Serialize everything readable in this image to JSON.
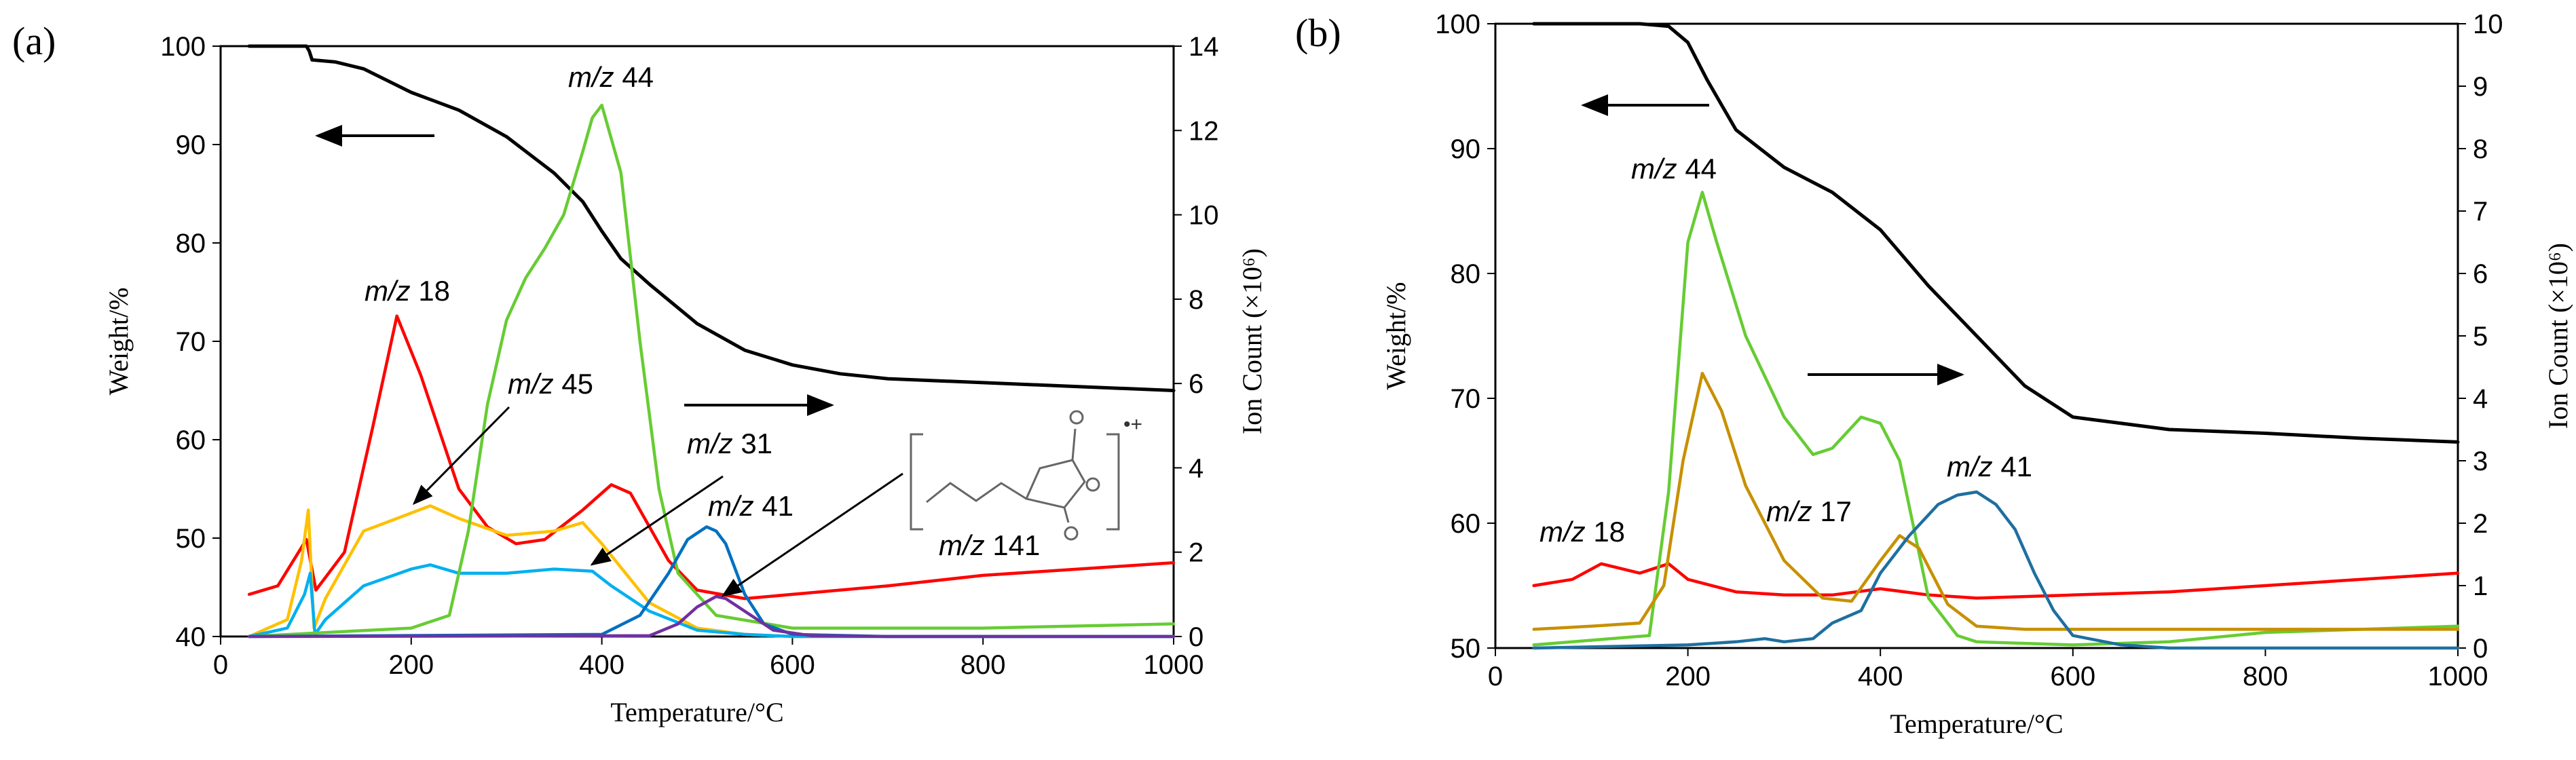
{
  "chart_data": [
    {
      "type": "line",
      "panel_label": "(a)",
      "xlabel": "Temperature/°C",
      "ylabel": "Weight/%",
      "y2label": "Ion Count (×10⁶)",
      "xlim": [
        0,
        1000
      ],
      "ylim": [
        40,
        100
      ],
      "y2lim": [
        0,
        14
      ],
      "xticks": [
        "0",
        "200",
        "400",
        "600",
        "800",
        "1000"
      ],
      "yticks": [
        "40",
        "50",
        "60",
        "70",
        "80",
        "90",
        "100"
      ],
      "y2ticks": [
        "0",
        "2",
        "4",
        "6",
        "8",
        "10",
        "12",
        "14"
      ],
      "grid": false,
      "series": [
        {
          "label": "",
          "axis": "left",
          "color": "#000000",
          "x": [
            30,
            90,
            93,
            96,
            120,
            150,
            200,
            250,
            300,
            350,
            380,
            400,
            420,
            450,
            500,
            550,
            600,
            650,
            700,
            800,
            900,
            1000
          ],
          "y": [
            100,
            100,
            99.5,
            98.6,
            98.4,
            97.7,
            95.3,
            93.5,
            90.8,
            87.1,
            84.2,
            81.2,
            78.4,
            75.8,
            71.8,
            69.1,
            67.6,
            66.7,
            66.2,
            65.8,
            65.4,
            65.0
          ]
        },
        {
          "label": "m/z 18",
          "axis": "right",
          "color": "#ff0000",
          "x": [
            30,
            60,
            90,
            100,
            130,
            160,
            185,
            210,
            250,
            280,
            310,
            340,
            380,
            410,
            430,
            470,
            500,
            550,
            600,
            700,
            800,
            900,
            1000
          ],
          "y": [
            1.0,
            1.2,
            2.3,
            1.1,
            2.0,
            5.0,
            7.6,
            6.2,
            3.5,
            2.6,
            2.2,
            2.3,
            3.0,
            3.6,
            3.4,
            1.8,
            1.1,
            0.9,
            1.0,
            1.2,
            1.45,
            1.6,
            1.75
          ]
        },
        {
          "label": "m/z 45",
          "axis": "right",
          "color": "#ffc000",
          "x": [
            30,
            70,
            85,
            92,
            98,
            110,
            150,
            220,
            250,
            300,
            350,
            380,
            400,
            450,
            500,
            550,
            600,
            700,
            800,
            1000
          ],
          "y": [
            0.0,
            0.4,
            1.8,
            3.0,
            0.2,
            0.9,
            2.5,
            3.1,
            2.8,
            2.4,
            2.5,
            2.7,
            2.2,
            0.8,
            0.2,
            0.05,
            0.0,
            0.0,
            0.0,
            0.0
          ]
        },
        {
          "label": "m/z 31",
          "axis": "right",
          "color": "#00b0f0",
          "x": [
            30,
            70,
            88,
            94,
            99,
            110,
            150,
            200,
            220,
            250,
            300,
            350,
            390,
            410,
            450,
            500,
            550,
            600,
            700,
            1000
          ],
          "y": [
            0.0,
            0.2,
            1.0,
            1.5,
            0.05,
            0.4,
            1.2,
            1.6,
            1.7,
            1.5,
            1.5,
            1.6,
            1.55,
            1.2,
            0.6,
            0.15,
            0.05,
            0.0,
            0.0,
            0.0
          ]
        },
        {
          "label": "m/z 44",
          "axis": "right",
          "color": "#66cc33",
          "x": [
            30,
            200,
            240,
            260,
            280,
            300,
            320,
            340,
            360,
            380,
            390,
            400,
            420,
            440,
            460,
            480,
            520,
            600,
            700,
            800,
            900,
            1000
          ],
          "y": [
            0.0,
            0.2,
            0.5,
            2.5,
            5.5,
            7.5,
            8.5,
            9.2,
            10.0,
            11.5,
            12.3,
            12.6,
            11.0,
            7.0,
            3.5,
            1.5,
            0.5,
            0.2,
            0.2,
            0.2,
            0.25,
            0.3
          ]
        },
        {
          "label": "m/z 41",
          "axis": "right",
          "color": "#0070c0",
          "x": [
            30,
            400,
            440,
            470,
            490,
            510,
            520,
            530,
            550,
            570,
            600,
            700,
            1000
          ],
          "y": [
            0.0,
            0.05,
            0.5,
            1.5,
            2.3,
            2.6,
            2.5,
            2.2,
            1.0,
            0.3,
            0.05,
            0.0,
            0.0
          ]
        },
        {
          "label": "m/z 141",
          "axis": "right",
          "color": "#7030a0",
          "x": [
            30,
            450,
            480,
            500,
            520,
            530,
            550,
            580,
            620,
            700,
            1000
          ],
          "y": [
            0.0,
            0.02,
            0.3,
            0.7,
            0.95,
            0.9,
            0.6,
            0.15,
            0.02,
            0.0,
            0.0
          ]
        }
      ],
      "annotations": {
        "mz44": {
          "prefix": "m/z",
          "value": "44"
        },
        "mz18": {
          "prefix": "m/z",
          "value": "18"
        },
        "mz45": {
          "prefix": "m/z",
          "value": "45"
        },
        "mz31": {
          "prefix": "m/z",
          "value": "31"
        },
        "mz41": {
          "prefix": "m/z",
          "value": "41"
        },
        "mz141": {
          "prefix": "m/z",
          "value": "141"
        },
        "radical_cation": "•+"
      }
    },
    {
      "type": "line",
      "panel_label": "(b)",
      "xlabel": "Temperature/°C",
      "ylabel": "Weight/%",
      "y2label": "Ion Count (×10⁶)",
      "xlim": [
        0,
        1000
      ],
      "ylim": [
        50,
        100
      ],
      "y2lim": [
        0,
        10
      ],
      "xticks": [
        "0",
        "200",
        "400",
        "600",
        "800",
        "1000"
      ],
      "yticks": [
        "50",
        "60",
        "70",
        "80",
        "90",
        "100"
      ],
      "y2ticks": [
        "0",
        "1",
        "2",
        "3",
        "4",
        "5",
        "6",
        "7",
        "8",
        "9",
        "10"
      ],
      "grid": false,
      "series": [
        {
          "label": "",
          "axis": "left",
          "color": "#000000",
          "x": [
            40,
            100,
            150,
            180,
            200,
            220,
            250,
            300,
            350,
            400,
            450,
            500,
            550,
            600,
            700,
            800,
            900,
            1000
          ],
          "y": [
            100,
            100,
            100,
            99.8,
            98.5,
            95.5,
            91.5,
            88.5,
            86.5,
            83.5,
            79.0,
            75.0,
            71.0,
            68.5,
            67.5,
            67.2,
            66.8,
            66.5
          ]
        },
        {
          "label": "m/z 18",
          "axis": "right",
          "color": "#ff0000",
          "x": [
            40,
            80,
            110,
            150,
            180,
            200,
            250,
            300,
            350,
            400,
            450,
            500,
            600,
            700,
            800,
            900,
            1000
          ],
          "y": [
            1.0,
            1.1,
            1.35,
            1.2,
            1.35,
            1.1,
            0.9,
            0.85,
            0.85,
            0.95,
            0.85,
            0.8,
            0.85,
            0.9,
            1.0,
            1.1,
            1.2
          ]
        },
        {
          "label": "m/z 44",
          "axis": "right",
          "color": "#66cc33",
          "x": [
            40,
            160,
            180,
            200,
            215,
            230,
            260,
            300,
            330,
            350,
            380,
            400,
            420,
            450,
            480,
            500,
            600,
            700,
            800,
            1000
          ],
          "y": [
            0.05,
            0.2,
            2.5,
            6.5,
            7.3,
            6.5,
            5.0,
            3.7,
            3.1,
            3.2,
            3.7,
            3.6,
            3.0,
            0.8,
            0.2,
            0.1,
            0.05,
            0.1,
            0.25,
            0.35
          ]
        },
        {
          "label": "m/z 17",
          "axis": "right",
          "color": "#c89000",
          "x": [
            40,
            100,
            150,
            175,
            195,
            215,
            235,
            260,
            300,
            340,
            370,
            400,
            420,
            440,
            470,
            500,
            550,
            600,
            700,
            800,
            1000
          ],
          "y": [
            0.3,
            0.35,
            0.4,
            1.0,
            3.0,
            4.4,
            3.8,
            2.6,
            1.4,
            0.8,
            0.75,
            1.4,
            1.8,
            1.6,
            0.7,
            0.35,
            0.3,
            0.3,
            0.3,
            0.3,
            0.3
          ]
        },
        {
          "label": "m/z 41",
          "axis": "right",
          "color": "#1f6fa0",
          "x": [
            40,
            200,
            250,
            280,
            300,
            330,
            350,
            380,
            400,
            430,
            460,
            480,
            500,
            520,
            540,
            560,
            580,
            600,
            650,
            700,
            1000
          ],
          "y": [
            0.0,
            0.05,
            0.1,
            0.15,
            0.1,
            0.15,
            0.4,
            0.6,
            1.2,
            1.8,
            2.3,
            2.45,
            2.5,
            2.3,
            1.9,
            1.2,
            0.6,
            0.2,
            0.05,
            0.0,
            0.0
          ]
        }
      ],
      "annotations": {
        "mz44": {
          "prefix": "m/z",
          "value": "44"
        },
        "mz18": {
          "prefix": "m/z",
          "value": "18"
        },
        "mz17": {
          "prefix": "m/z",
          "value": "17"
        },
        "mz41": {
          "prefix": "m/z",
          "value": "41"
        }
      }
    }
  ]
}
